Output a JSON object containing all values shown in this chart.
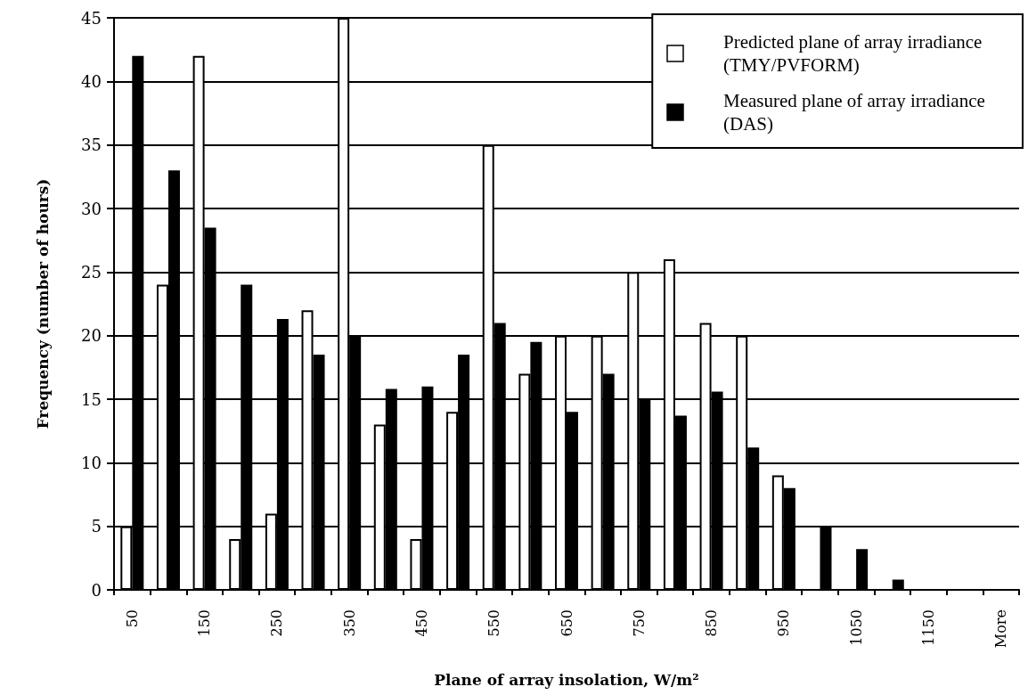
{
  "chart_data": {
    "type": "bar",
    "xlabel": "Plane of array insolation, W/m²",
    "ylabel": "Frequency (number of hours)",
    "categories": [
      "50",
      null,
      "150",
      null,
      "250",
      null,
      "350",
      null,
      "450",
      null,
      "550",
      null,
      "650",
      null,
      "750",
      null,
      "850",
      null,
      "950",
      null,
      "1050",
      null,
      "1150",
      null,
      "More"
    ],
    "series": [
      {
        "name": "Predicted plane of array irradiance (TMY/PVFORM)",
        "color": "#ffffff",
        "values": [
          5,
          24,
          42,
          4,
          6,
          22,
          45,
          13,
          4,
          14,
          35,
          17,
          20,
          20,
          25,
          26,
          21,
          20,
          9,
          0,
          0,
          0,
          0,
          0,
          0
        ]
      },
      {
        "name": "Measured plane of array irradiance (DAS)",
        "color": "#000000",
        "values": [
          42,
          33,
          28.5,
          24,
          21.3,
          18.5,
          20,
          15.8,
          16,
          18.5,
          21,
          19.5,
          14,
          17,
          15,
          13.7,
          15.6,
          11.2,
          8,
          5,
          3.2,
          0.8,
          0,
          0,
          0
        ]
      }
    ],
    "ylim": [
      0,
      45
    ],
    "yticks": [
      0,
      5,
      10,
      15,
      20,
      25,
      30,
      35,
      40,
      45
    ],
    "grid": "y",
    "legend": "top right"
  }
}
